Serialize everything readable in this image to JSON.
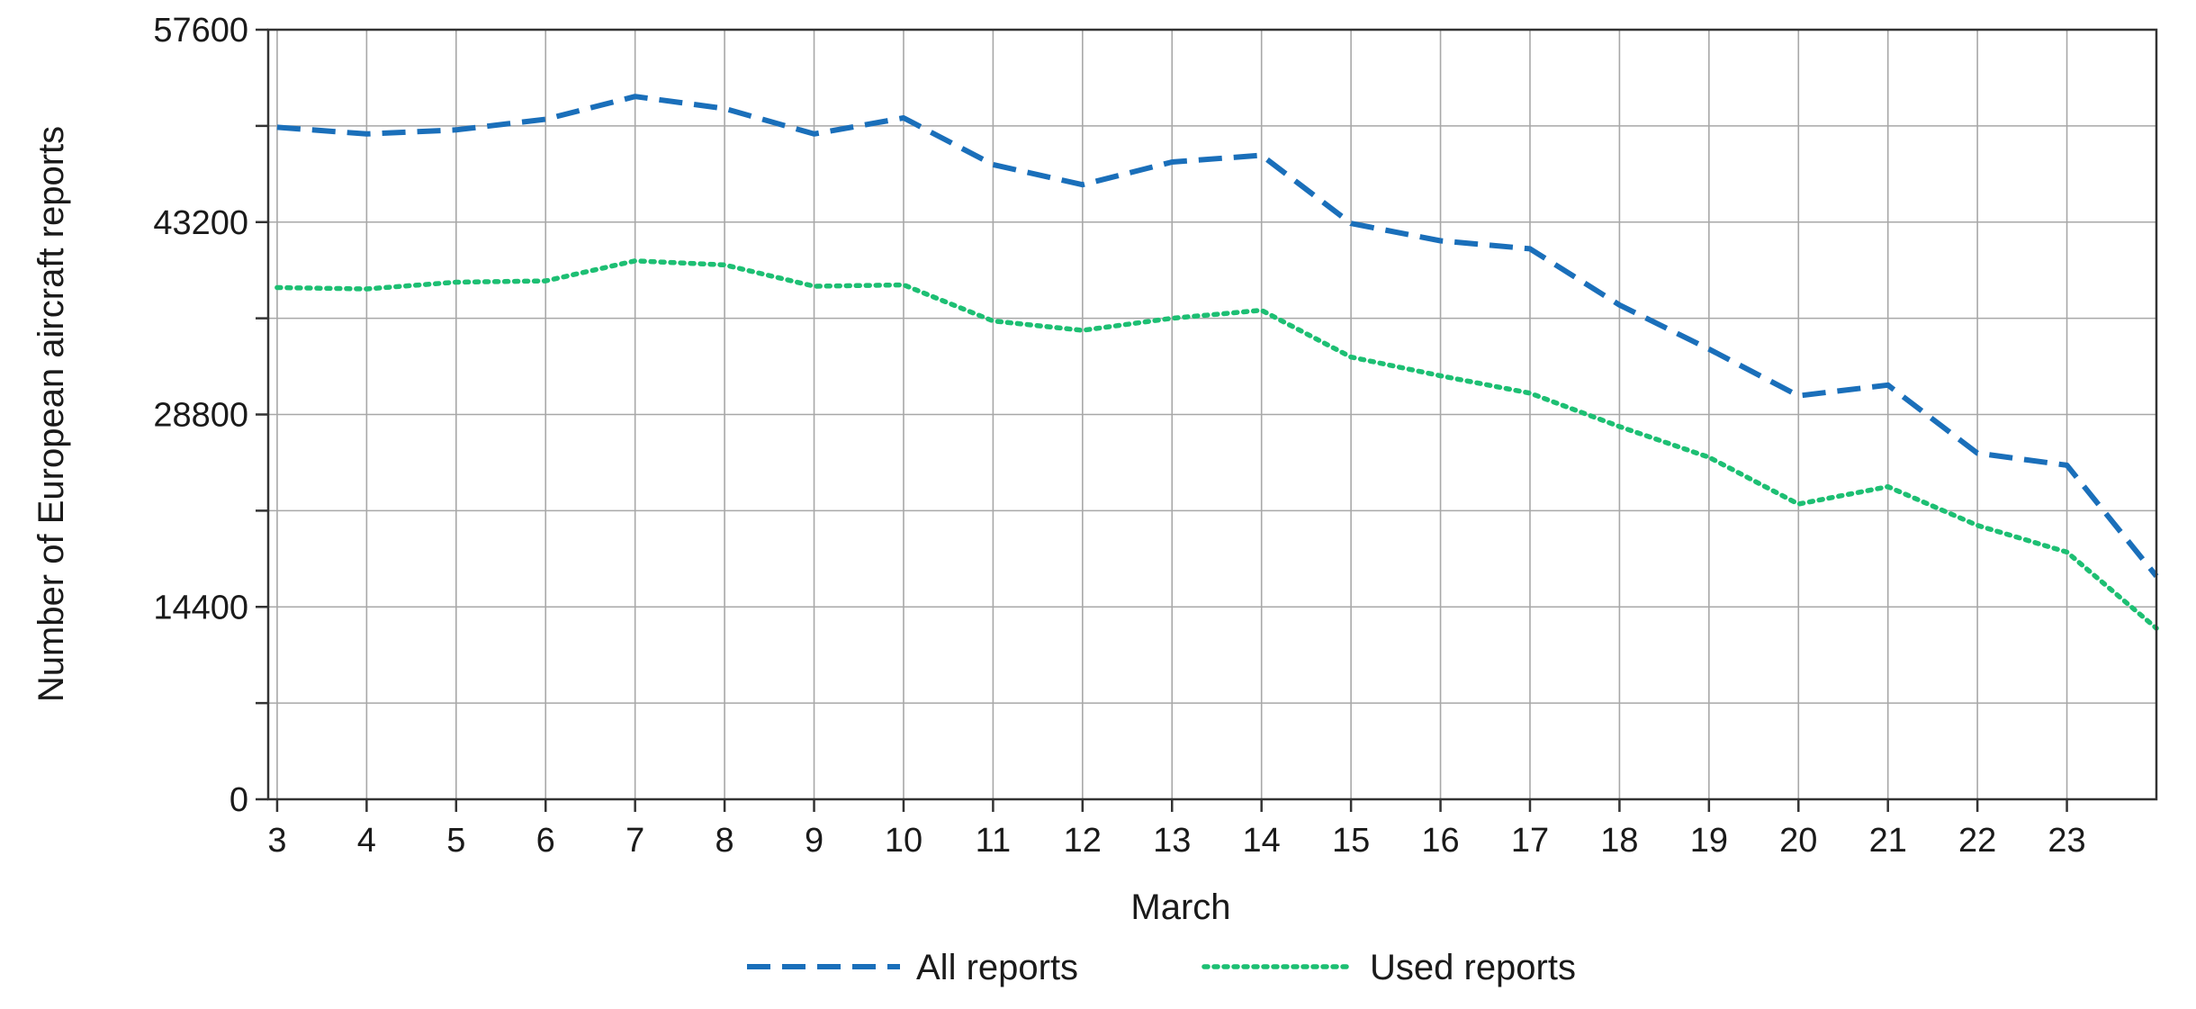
{
  "chart_data": {
    "type": "line",
    "title": "",
    "xlabel": "March",
    "ylabel": "Number of European aircraft reports",
    "x": [
      3,
      4,
      5,
      6,
      7,
      8,
      9,
      10,
      11,
      12,
      13,
      14,
      15,
      16,
      17,
      18,
      19,
      20,
      21,
      22,
      23,
      24
    ],
    "x_tick_labels": [
      "3",
      "4",
      "5",
      "6",
      "7",
      "8",
      "9",
      "10",
      "11",
      "12",
      "13",
      "14",
      "15",
      "16",
      "17",
      "18",
      "19",
      "20",
      "21",
      "22",
      "23"
    ],
    "y_tick_labels": [
      "0",
      "14400",
      "28800",
      "43200",
      "57600"
    ],
    "y_ticks": [
      0,
      14400,
      28800,
      43200,
      57600
    ],
    "ylim": [
      0,
      57600
    ],
    "y_minor_step": 7200,
    "grid": true,
    "legend_position": "bottom",
    "series": [
      {
        "name": "All reports",
        "color": "#1a6fba",
        "style": "dashed",
        "values": [
          50300,
          49800,
          50100,
          50900,
          52600,
          51700,
          49800,
          51000,
          47500,
          46000,
          47700,
          48200,
          43100,
          41800,
          41200,
          37000,
          33700,
          30200,
          31000,
          25900,
          25000,
          16700
        ]
      },
      {
        "name": "Used reports",
        "color": "#1dbf73",
        "style": "dotted",
        "values": [
          38300,
          38200,
          38700,
          38800,
          40300,
          40000,
          38400,
          38500,
          35800,
          35100,
          36000,
          36600,
          33100,
          31700,
          30400,
          27900,
          25600,
          22100,
          23400,
          20500,
          18500,
          12800
        ]
      }
    ]
  }
}
